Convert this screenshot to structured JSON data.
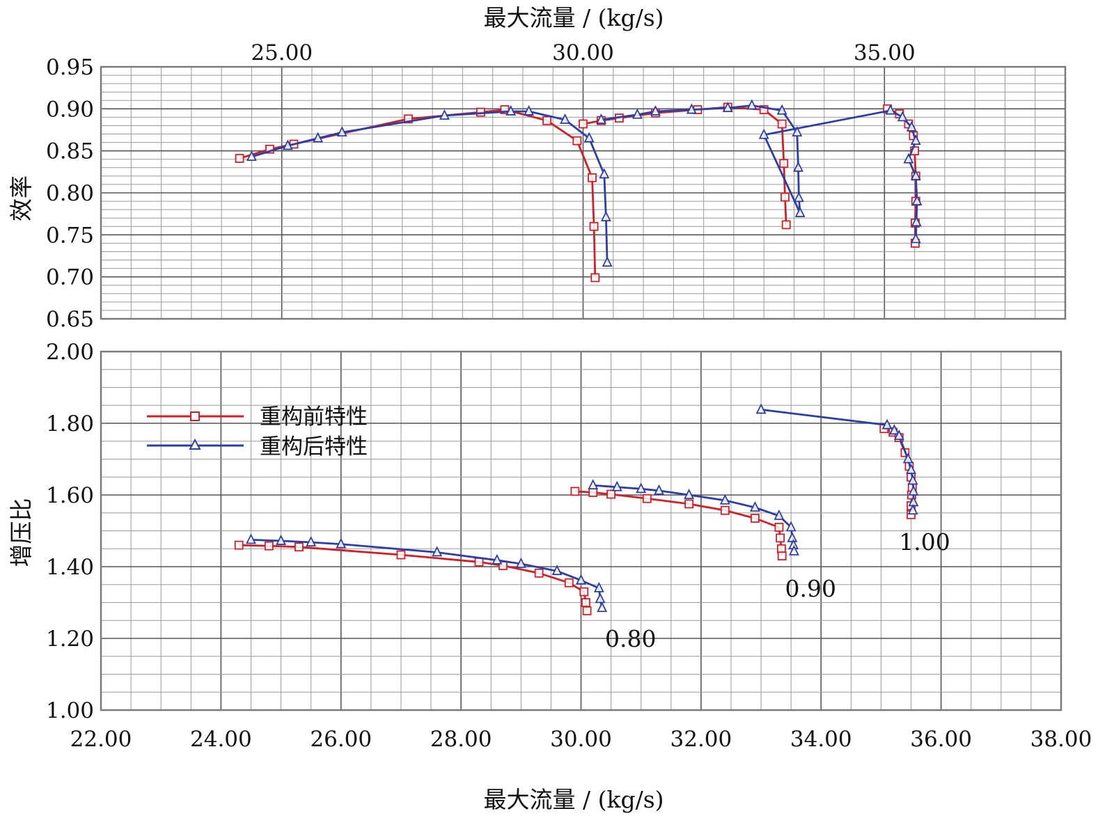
{
  "colors": {
    "series_before": "#d21f26",
    "series_after": "#2b3ea8",
    "grid_major": "#555555",
    "grid_minor": "#9a9a9a",
    "frame": "#7a7a7a"
  },
  "chart_data": [
    {
      "type": "line",
      "panel": "efficiency",
      "xlabel": "最大流量 / (kg/s)",
      "xaxis_position": "top",
      "ylabel": "效率",
      "xlim": [
        22.0,
        38.0
      ],
      "ylim": [
        0.65,
        0.95
      ],
      "xticks": [
        25.0,
        30.0,
        35.0
      ],
      "xtick_labels": [
        "25.00",
        "30.00",
        "35.00"
      ],
      "yticks": [
        0.65,
        0.7,
        0.75,
        0.8,
        0.85,
        0.9,
        0.95
      ],
      "ytick_labels": [
        "0.65",
        "0.70",
        "0.75",
        "0.80",
        "0.85",
        "0.90",
        "0.95"
      ],
      "grid": true,
      "series": [
        {
          "name": "重构前特性",
          "marker": "square",
          "curves": [
            [
              [
                24.3,
                0.841
              ],
              [
                24.8,
                0.852
              ],
              [
                25.2,
                0.858
              ],
              [
                27.1,
                0.888
              ],
              [
                28.3,
                0.896
              ],
              [
                28.7,
                0.899
              ],
              [
                29.4,
                0.886
              ],
              [
                29.9,
                0.862
              ],
              [
                30.15,
                0.818
              ],
              [
                30.18,
                0.76
              ],
              [
                30.2,
                0.699
              ]
            ],
            [
              [
                30.0,
                0.882
              ],
              [
                30.3,
                0.886
              ],
              [
                30.6,
                0.889
              ],
              [
                31.2,
                0.895
              ],
              [
                31.9,
                0.899
              ],
              [
                32.4,
                0.902
              ],
              [
                33.0,
                0.899
              ],
              [
                33.3,
                0.882
              ],
              [
                33.33,
                0.835
              ],
              [
                33.35,
                0.795
              ],
              [
                33.37,
                0.762
              ]
            ],
            [
              [
                35.05,
                0.9
              ],
              [
                35.25,
                0.894
              ],
              [
                35.4,
                0.882
              ],
              [
                35.48,
                0.868
              ],
              [
                35.5,
                0.85
              ],
              [
                35.52,
                0.82
              ],
              [
                35.52,
                0.79
              ],
              [
                35.51,
                0.764
              ],
              [
                35.51,
                0.74
              ]
            ]
          ]
        },
        {
          "name": "重构后特性",
          "marker": "triangle",
          "curves": [
            [
              [
                24.5,
                0.843
              ],
              [
                25.1,
                0.856
              ],
              [
                25.6,
                0.865
              ],
              [
                26.0,
                0.872
              ],
              [
                27.7,
                0.892
              ],
              [
                28.8,
                0.897
              ],
              [
                29.1,
                0.897
              ],
              [
                29.7,
                0.887
              ],
              [
                30.1,
                0.865
              ],
              [
                30.35,
                0.822
              ],
              [
                30.38,
                0.771
              ],
              [
                30.4,
                0.717
              ]
            ],
            [
              [
                30.3,
                0.887
              ],
              [
                30.9,
                0.893
              ],
              [
                31.2,
                0.897
              ],
              [
                31.8,
                0.899
              ],
              [
                32.4,
                0.901
              ],
              [
                32.8,
                0.904
              ],
              [
                33.3,
                0.898
              ],
              [
                33.55,
                0.872
              ],
              [
                33.57,
                0.83
              ],
              [
                33.58,
                0.794
              ],
              [
                33.6,
                0.776
              ],
              [
                33.0,
                0.869
              ],
              [
                35.1,
                0.898
              ],
              [
                35.3,
                0.89
              ],
              [
                35.45,
                0.878
              ],
              [
                35.52,
                0.862
              ],
              [
                35.4,
                0.84
              ],
              [
                35.52,
                0.82
              ],
              [
                35.54,
                0.79
              ],
              [
                35.53,
                0.765
              ],
              [
                35.52,
                0.745
              ]
            ]
          ]
        }
      ]
    },
    {
      "type": "line",
      "panel": "pressure_ratio",
      "xlabel": "最大流量 / (kg/s)",
      "ylabel": "增压比",
      "xlim": [
        22.0,
        38.0
      ],
      "ylim": [
        1.0,
        2.0
      ],
      "xticks": [
        22.0,
        24.0,
        26.0,
        28.0,
        30.0,
        32.0,
        34.0,
        36.0,
        38.0
      ],
      "xtick_labels": [
        "22.00",
        "24.00",
        "26.00",
        "28.00",
        "30.00",
        "32.00",
        "34.00",
        "36.00",
        "38.00"
      ],
      "yticks": [
        1.0,
        1.2,
        1.4,
        1.6,
        1.8,
        2.0
      ],
      "ytick_labels": [
        "1.00",
        "1.20",
        "1.40",
        "1.60",
        "1.80",
        "2.00"
      ],
      "grid": true,
      "legend_position": "top-left",
      "annotations": [
        {
          "text": "0.80",
          "x": 30.4,
          "y": 1.2
        },
        {
          "text": "0.90",
          "x": 33.4,
          "y": 1.34
        },
        {
          "text": "1.00",
          "x": 35.3,
          "y": 1.47
        }
      ],
      "series": [
        {
          "name": "重构前特性",
          "marker": "square",
          "curves": [
            [
              [
                24.3,
                1.46
              ],
              [
                24.8,
                1.458
              ],
              [
                25.3,
                1.455
              ],
              [
                27.0,
                1.433
              ],
              [
                28.3,
                1.413
              ],
              [
                28.7,
                1.403
              ],
              [
                29.3,
                1.382
              ],
              [
                29.8,
                1.355
              ],
              [
                30.05,
                1.33
              ],
              [
                30.08,
                1.3
              ],
              [
                30.1,
                1.277
              ]
            ],
            [
              [
                29.9,
                1.61
              ],
              [
                30.2,
                1.607
              ],
              [
                30.5,
                1.602
              ],
              [
                31.1,
                1.59
              ],
              [
                31.8,
                1.575
              ],
              [
                32.4,
                1.557
              ],
              [
                32.9,
                1.535
              ],
              [
                33.3,
                1.51
              ],
              [
                33.32,
                1.48
              ],
              [
                33.34,
                1.45
              ],
              [
                33.35,
                1.43
              ]
            ],
            [
              [
                35.05,
                1.785
              ],
              [
                35.2,
                1.775
              ],
              [
                35.3,
                1.76
              ],
              [
                35.4,
                1.718
              ],
              [
                35.47,
                1.68
              ],
              [
                35.5,
                1.65
              ],
              [
                35.52,
                1.62
              ],
              [
                35.51,
                1.6
              ],
              [
                35.5,
                1.57
              ],
              [
                35.5,
                1.545
              ]
            ]
          ]
        },
        {
          "name": "重构后特性",
          "marker": "triangle",
          "curves": [
            [
              [
                24.5,
                1.475
              ],
              [
                25.0,
                1.472
              ],
              [
                25.5,
                1.468
              ],
              [
                26.0,
                1.463
              ],
              [
                27.6,
                1.44
              ],
              [
                28.6,
                1.418
              ],
              [
                29.0,
                1.408
              ],
              [
                29.6,
                1.388
              ],
              [
                30.0,
                1.362
              ],
              [
                30.3,
                1.34
              ],
              [
                30.32,
                1.31
              ],
              [
                30.35,
                1.285
              ]
            ],
            [
              [
                30.2,
                1.627
              ],
              [
                30.6,
                1.622
              ],
              [
                31.0,
                1.617
              ],
              [
                31.3,
                1.612
              ],
              [
                31.8,
                1.6
              ],
              [
                32.4,
                1.585
              ],
              [
                32.9,
                1.565
              ],
              [
                33.3,
                1.542
              ],
              [
                33.5,
                1.51
              ],
              [
                33.52,
                1.48
              ],
              [
                33.54,
                1.46
              ],
              [
                33.55,
                1.443
              ]
            ],
            [
              [
                33.0,
                1.838
              ],
              [
                35.1,
                1.795
              ],
              [
                35.22,
                1.78
              ],
              [
                35.3,
                1.765
              ],
              [
                35.45,
                1.7
              ],
              [
                35.5,
                1.67
              ],
              [
                35.53,
                1.64
              ],
              [
                35.54,
                1.61
              ],
              [
                35.54,
                1.58
              ],
              [
                35.53,
                1.557
              ]
            ]
          ]
        }
      ]
    }
  ],
  "legend": [
    {
      "label": "重构前特性"
    },
    {
      "label": "重构后特性"
    }
  ]
}
